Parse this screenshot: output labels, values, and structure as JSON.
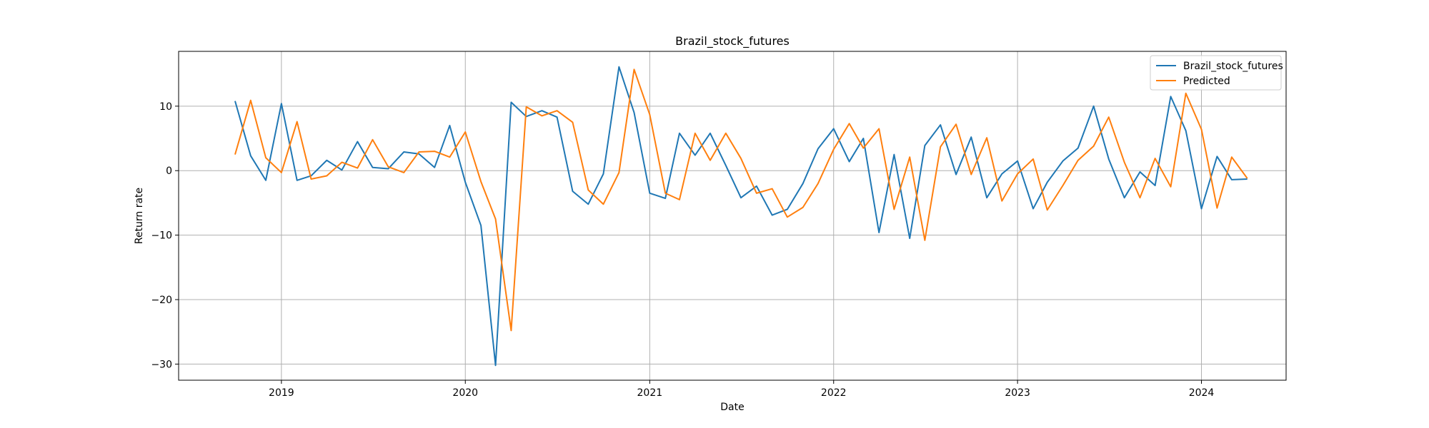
{
  "chart_data": {
    "type": "line",
    "title": "Brazil_stock_futures",
    "xlabel": "Date",
    "ylabel": "Return rate",
    "xlim": [
      "2018-06-11",
      "2024-06-17"
    ],
    "ylim": [
      -32.5,
      18.5
    ],
    "x_ticks": [
      {
        "date": "2019-01-01",
        "label": "2019"
      },
      {
        "date": "2020-01-01",
        "label": "2020"
      },
      {
        "date": "2021-01-01",
        "label": "2021"
      },
      {
        "date": "2022-01-01",
        "label": "2022"
      },
      {
        "date": "2023-01-01",
        "label": "2023"
      },
      {
        "date": "2024-01-01",
        "label": "2024"
      }
    ],
    "y_ticks": [
      {
        "value": 10,
        "label": "10"
      },
      {
        "value": 0,
        "label": "0"
      },
      {
        "value": -10,
        "label": "−10"
      },
      {
        "value": -20,
        "label": "−20"
      },
      {
        "value": -30,
        "label": "−30"
      }
    ],
    "grid": true,
    "legend_position": "top-right",
    "x": [
      "2018-10-01",
      "2018-11-01",
      "2018-12-01",
      "2019-01-01",
      "2019-02-01",
      "2019-03-01",
      "2019-04-01",
      "2019-05-01",
      "2019-06-01",
      "2019-07-01",
      "2019-08-01",
      "2019-09-01",
      "2019-10-01",
      "2019-11-01",
      "2019-12-01",
      "2020-01-01",
      "2020-02-01",
      "2020-03-01",
      "2020-04-01",
      "2020-05-01",
      "2020-06-01",
      "2020-07-01",
      "2020-08-01",
      "2020-09-01",
      "2020-10-01",
      "2020-11-01",
      "2020-12-01",
      "2021-01-01",
      "2021-02-01",
      "2021-03-01",
      "2021-04-01",
      "2021-05-01",
      "2021-06-01",
      "2021-07-01",
      "2021-08-01",
      "2021-09-01",
      "2021-10-01",
      "2021-11-01",
      "2021-12-01",
      "2022-01-01",
      "2022-02-01",
      "2022-03-01",
      "2022-04-01",
      "2022-05-01",
      "2022-06-01",
      "2022-07-01",
      "2022-08-01",
      "2022-09-01",
      "2022-10-01",
      "2022-11-01",
      "2022-12-01",
      "2023-01-01",
      "2023-02-01",
      "2023-03-01",
      "2023-04-01",
      "2023-05-01",
      "2023-06-01",
      "2023-07-01",
      "2023-08-01",
      "2023-09-01",
      "2023-10-01",
      "2023-11-01",
      "2023-12-01",
      "2024-01-01",
      "2024-02-01",
      "2024-03-01",
      "2024-04-01"
    ],
    "series": [
      {
        "name": "Brazil_stock_futures",
        "color": "#1f77b4",
        "values": [
          10.8,
          2.3,
          -1.5,
          10.4,
          -1.5,
          -0.8,
          1.6,
          0.1,
          4.5,
          0.5,
          0.3,
          2.9,
          2.6,
          0.5,
          7.0,
          -1.8,
          -8.5,
          -30.2,
          10.6,
          8.4,
          9.3,
          8.3,
          -3.2,
          -5.2,
          -0.5,
          16.1,
          9.0,
          -3.5,
          -4.3,
          5.8,
          2.4,
          5.8,
          0.8,
          -4.2,
          -2.4,
          -6.9,
          -6.0,
          -2.0,
          3.4,
          6.5,
          1.4,
          5.0,
          -9.6,
          2.5,
          -10.5,
          3.9,
          7.1,
          -0.6,
          5.2,
          -4.2,
          -0.5,
          1.5,
          -5.9,
          -1.8,
          1.5,
          3.5,
          10.0,
          1.8,
          -4.2,
          -0.2,
          -2.3,
          11.5,
          6.2,
          -5.9,
          2.2,
          -1.4,
          -1.3
        ]
      },
      {
        "name": "Predicted",
        "color": "#ff7f0e",
        "values": [
          2.5,
          10.9,
          2.0,
          -0.3,
          7.6,
          -1.3,
          -0.8,
          1.3,
          0.4,
          4.8,
          0.6,
          -0.3,
          2.9,
          3.0,
          2.1,
          6.0,
          -1.7,
          -7.5,
          -24.8,
          9.9,
          8.5,
          9.3,
          7.5,
          -3.0,
          -5.2,
          -0.3,
          15.7,
          8.7,
          -3.5,
          -4.5,
          5.8,
          1.6,
          5.8,
          1.9,
          -3.5,
          -2.8,
          -7.2,
          -5.7,
          -2.0,
          3.3,
          7.3,
          3.5,
          6.5,
          -6.0,
          2.1,
          -10.8,
          3.7,
          7.2,
          -0.6,
          5.1,
          -4.7,
          -0.5,
          1.8,
          -6.1,
          -2.3,
          1.6,
          3.8,
          8.3,
          1.3,
          -4.2,
          1.9,
          -2.5,
          12.0,
          6.4,
          -5.8,
          2.1,
          -1.2
        ]
      }
    ]
  }
}
